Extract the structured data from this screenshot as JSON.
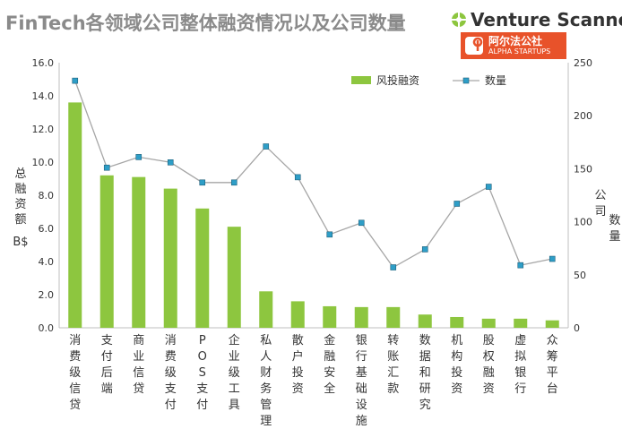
{
  "header": {
    "title": "FinTech各领域公司整体融资情况以及公司数量",
    "brand": "Venture Scanner",
    "partner_cn": "阿尔法公社",
    "partner_en": "ALPHA STARTUPS"
  },
  "colors": {
    "bar": "#8dc63f",
    "line": "#a6a6a6",
    "marker": "#2e9ec7",
    "marker_edge": "#1f5f7a",
    "brand_orange": "#e8522a",
    "brand_green": "#8dc63f"
  },
  "chart_data": {
    "type": "bar+line",
    "title": "FinTech各领域公司整体融资情况以及公司数量",
    "categories": [
      "消费级信贷",
      "支付后端",
      "商业信贷",
      "消费级支付",
      "POS支付",
      "企业级工具",
      "私人财务管理",
      "散户投资",
      "金融安全",
      "银行基础设施",
      "转账汇款",
      "数据和研究",
      "机构投资",
      "股权融资",
      "虚拟银行",
      "众筹平台"
    ],
    "series": [
      {
        "name": "风投融资",
        "axis": "left",
        "type": "bar",
        "values": [
          13.6,
          9.2,
          9.1,
          8.4,
          7.2,
          6.1,
          2.2,
          1.6,
          1.3,
          1.25,
          1.25,
          0.8,
          0.65,
          0.55,
          0.55,
          0.45
        ]
      },
      {
        "name": "数量",
        "axis": "right",
        "type": "line",
        "values": [
          233,
          151,
          161,
          156,
          137,
          137,
          171,
          142,
          88,
          99,
          57,
          74,
          117,
          133,
          59,
          65
        ]
      }
    ],
    "ylabel_left": [
      "总",
      "融",
      "资",
      "额"
    ],
    "ylabel_left_unit": "B$",
    "ylabel_right_1": "公司",
    "ylabel_right_2": "数量",
    "ylim_left": [
      0,
      16
    ],
    "yticks_left": [
      "0.0",
      "2.0",
      "4.0",
      "6.0",
      "8.0",
      "10.0",
      "12.0",
      "14.0",
      "16.0"
    ],
    "ylim_right": [
      0,
      250
    ],
    "yticks_right": [
      "0",
      "50",
      "100",
      "150",
      "200",
      "250"
    ],
    "grid": false,
    "legend_position": "top-right"
  }
}
